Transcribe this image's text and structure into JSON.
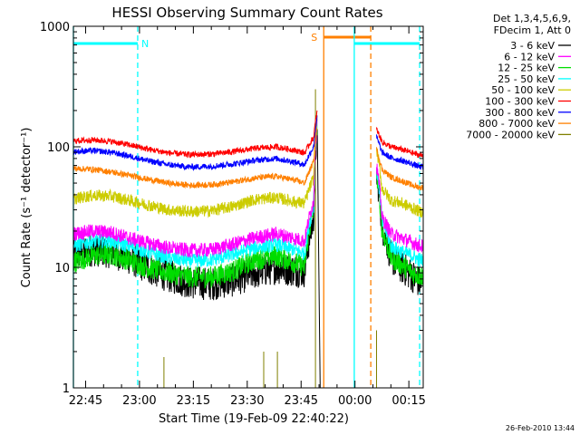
{
  "chart_data": {
    "type": "line",
    "title": "HESSI Observing Summary Count Rates",
    "xlabel": "Start Time (19-Feb-09 22:40:22)",
    "ylabel": "Count Rate (s⁻¹ detector⁻¹)",
    "yscale": "log",
    "ylim": [
      1,
      1000
    ],
    "y_tick_labels": [
      "1",
      "10",
      "100",
      "1000"
    ],
    "y_tick_values": [
      1,
      10,
      100,
      1000
    ],
    "xlim_minutes": [
      -18.4,
      79
    ],
    "x_tick_labels": [
      "22:45",
      "23:00",
      "23:15",
      "23:30",
      "23:45",
      "00:00",
      "00:15"
    ],
    "x_tick_minutes": [
      -15,
      0,
      15,
      30,
      45,
      60,
      75
    ],
    "legend": {
      "placement": "right",
      "header": [
        "Det 1,3,4,5,6,9,",
        "FDecim 1, Att 0"
      ],
      "entries": [
        {
          "label": "3 - 6 keV",
          "color": "#000000"
        },
        {
          "label": "6 - 12 keV",
          "color": "#ff00ff"
        },
        {
          "label": "12 - 25 keV",
          "color": "#00dd00"
        },
        {
          "label": "25 - 50 keV",
          "color": "#00ffff"
        },
        {
          "label": "50 - 100 keV",
          "color": "#cccc00"
        },
        {
          "label": "100 - 300 keV",
          "color": "#ff0000"
        },
        {
          "label": "300 - 800 keV",
          "color": "#0000ff"
        },
        {
          "label": "800 - 7000 keV",
          "color": "#ff8000"
        },
        {
          "label": "7000 - 20000 keV",
          "color": "#808000"
        }
      ]
    },
    "flags": [
      {
        "label": "N",
        "color": "#00ffff",
        "start_min": -18.4,
        "end_min": -0.5
      },
      {
        "label": "S",
        "color": "#ff8000",
        "start_min": 51.3,
        "end_min": 64.4
      },
      {
        "label": "",
        "color": "#00ffff",
        "start_min": 59.8,
        "end_min": 78
      }
    ],
    "vlines": [
      {
        "minute": -18.4,
        "color": "#00ffff",
        "style": "solid"
      },
      {
        "minute": -0.5,
        "color": "#00ffff",
        "style": "dashed"
      },
      {
        "minute": 51.3,
        "color": "#ff8000",
        "style": "solid"
      },
      {
        "minute": 59.8,
        "color": "#00ffff",
        "style": "solid"
      },
      {
        "minute": 64.4,
        "color": "#ff8000",
        "style": "dashed"
      },
      {
        "minute": 78,
        "color": "#00ffff",
        "style": "dashed"
      }
    ],
    "series": [
      {
        "name": "3 - 6 keV",
        "color": "#000000",
        "noise": 0.14,
        "x": [
          -18.4,
          -13,
          -8,
          -3,
          2,
          8,
          14,
          20,
          26,
          32,
          38,
          43,
          46,
          48.5,
          49.5,
          66,
          67.5,
          70,
          73,
          76,
          78
        ],
        "y": [
          13,
          14,
          13.5,
          12,
          10,
          8.5,
          7.5,
          7.3,
          7.8,
          9,
          10,
          9.5,
          9.3,
          25,
          140,
          60,
          22,
          12,
          10,
          8.5,
          7.5
        ]
      },
      {
        "name": "6 - 12 keV",
        "color": "#ff00ff",
        "noise": 0.06,
        "x": [
          -18.4,
          -13,
          -8,
          -3,
          2,
          8,
          14,
          20,
          26,
          32,
          38,
          43,
          46,
          48.5,
          49.5,
          66,
          67.5,
          70,
          73,
          76,
          78
        ],
        "y": [
          19,
          20,
          19.5,
          17.5,
          16,
          14.5,
          13.8,
          14,
          15.5,
          17.5,
          19,
          17.5,
          16.5,
          35,
          170,
          70,
          26,
          19,
          17.5,
          16,
          15
        ]
      },
      {
        "name": "12 - 25 keV",
        "color": "#00dd00",
        "noise": 0.09,
        "x": [
          -18.4,
          -13,
          -8,
          -3,
          2,
          8,
          14,
          20,
          26,
          32,
          38,
          43,
          46,
          48.5,
          49.5,
          66,
          67.5,
          70,
          73,
          76,
          78
        ],
        "y": [
          11,
          12.5,
          12.8,
          11.5,
          10,
          9,
          8.3,
          8.3,
          9.3,
          11.5,
          12.5,
          11,
          10,
          30,
          160,
          60,
          20,
          12,
          10.5,
          9,
          8.5
        ]
      },
      {
        "name": "25 - 50 keV",
        "color": "#00ffff",
        "noise": 0.06,
        "x": [
          -18.4,
          -13,
          -8,
          -3,
          2,
          8,
          14,
          20,
          26,
          32,
          38,
          43,
          46,
          48.5,
          49.5,
          66,
          67.5,
          70,
          73,
          76,
          78
        ],
        "y": [
          15,
          16.5,
          16.5,
          15,
          13.5,
          12,
          11.3,
          11.5,
          12.8,
          14.5,
          15.5,
          14,
          13,
          32,
          170,
          65,
          24,
          15,
          13.5,
          12.5,
          11.5
        ]
      },
      {
        "name": "50 - 100 keV",
        "color": "#cccc00",
        "noise": 0.05,
        "x": [
          -18.4,
          -13,
          -8,
          -3,
          2,
          8,
          14,
          20,
          26,
          32,
          38,
          43,
          46,
          48.5,
          49.5,
          66,
          67.5,
          70,
          73,
          76,
          78
        ],
        "y": [
          37,
          39.5,
          39,
          36,
          33,
          30,
          29,
          29.5,
          32,
          36.5,
          38,
          35,
          34,
          55,
          180,
          95,
          45,
          36,
          34,
          31,
          29
        ]
      },
      {
        "name": "100 - 300 keV",
        "color": "#ff0000",
        "noise": 0.025,
        "x": [
          -18.4,
          -13,
          -8,
          -3,
          2,
          8,
          14,
          20,
          26,
          32,
          38,
          43,
          46,
          48.5,
          49.5,
          66,
          67.5,
          70,
          73,
          76,
          78
        ],
        "y": [
          112,
          114,
          111,
          104,
          96,
          89,
          86,
          87,
          91,
          97,
          100,
          94,
          89,
          120,
          200,
          140,
          110,
          100,
          95,
          89,
          85
        ]
      },
      {
        "name": "300 - 800 keV",
        "color": "#0000ff",
        "noise": 0.025,
        "x": [
          -18.4,
          -13,
          -8,
          -3,
          2,
          8,
          14,
          20,
          26,
          32,
          38,
          43,
          46,
          48.5,
          49.5,
          66,
          67.5,
          70,
          73,
          76,
          78
        ],
        "y": [
          91,
          93,
          90,
          84,
          77,
          71,
          68,
          69,
          72,
          77,
          80,
          75,
          71,
          100,
          180,
          120,
          90,
          81,
          77,
          72,
          68
        ]
      },
      {
        "name": "800 - 7000 keV",
        "color": "#ff8000",
        "noise": 0.025,
        "x": [
          -18.4,
          -13,
          -8,
          -3,
          2,
          8,
          14,
          20,
          26,
          32,
          38,
          43,
          46,
          48.5,
          49.5,
          66,
          67.5,
          70,
          73,
          76,
          78
        ],
        "y": [
          66,
          65,
          62,
          58,
          54,
          50,
          48,
          48.5,
          51,
          55,
          57,
          53,
          50,
          75,
          150,
          95,
          65,
          56,
          52,
          48,
          46
        ]
      },
      {
        "name": "7000 - 20000 keV",
        "color": "#808000",
        "noise": 0,
        "x": [
          -18.4,
          6.8,
          6.8,
          6.8,
          7.2,
          34.6,
          34.6,
          34.6,
          38.4,
          38.4,
          38.4,
          38.8,
          49,
          49,
          49,
          66,
          66,
          66,
          67,
          78
        ],
        "y": [
          1,
          1,
          1.8,
          1,
          1,
          1,
          2,
          1,
          1,
          2,
          1,
          1,
          1,
          300,
          1,
          1,
          3,
          1,
          1,
          1
        ]
      }
    ],
    "gap": {
      "start_min": 49.5,
      "end_min": 66
    },
    "grid": false
  },
  "footer": {
    "timestamp": "26-Feb-2010 13:44"
  }
}
